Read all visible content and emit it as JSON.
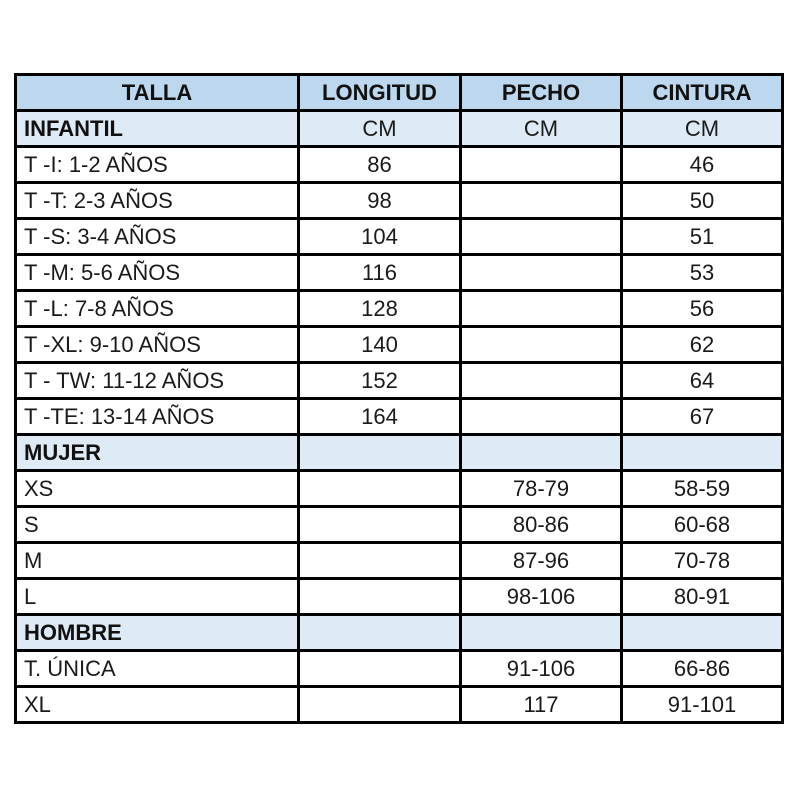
{
  "page": {
    "background": "#ffffff"
  },
  "table": {
    "border_color": "#000000",
    "header_bg": "#BDD7EE",
    "section_bg": "#DEEAF6",
    "row_bg": "#FFFFFF",
    "columns": [
      {
        "key": "talla",
        "label": "TALLA"
      },
      {
        "key": "longitud",
        "label": "LONGITUD"
      },
      {
        "key": "pecho",
        "label": "PECHO"
      },
      {
        "key": "cintura",
        "label": "CINTURA"
      }
    ],
    "rows": [
      {
        "type": "section",
        "talla": "INFANTIL",
        "longitud": "CM",
        "pecho": "CM",
        "cintura": "CM"
      },
      {
        "type": "data",
        "talla": "T -I: 1-2 AÑOS",
        "longitud": "86",
        "pecho": "",
        "cintura": "46"
      },
      {
        "type": "data",
        "talla": "T -T: 2-3 AÑOS",
        "longitud": "98",
        "pecho": "",
        "cintura": "50"
      },
      {
        "type": "data",
        "talla": "T -S: 3-4 AÑOS",
        "longitud": "104",
        "pecho": "",
        "cintura": "51"
      },
      {
        "type": "data",
        "talla": "T -M: 5-6 AÑOS",
        "longitud": "116",
        "pecho": "",
        "cintura": "53"
      },
      {
        "type": "data",
        "talla": "T -L: 7-8 AÑOS",
        "longitud": "128",
        "pecho": "",
        "cintura": "56"
      },
      {
        "type": "data",
        "talla": "T -XL: 9-10 AÑOS",
        "longitud": "140",
        "pecho": "",
        "cintura": "62"
      },
      {
        "type": "data",
        "talla": "T - TW: 11-12 AÑOS",
        "longitud": "152",
        "pecho": "",
        "cintura": "64"
      },
      {
        "type": "data",
        "talla": "T -TE: 13-14 AÑOS",
        "longitud": "164",
        "pecho": "",
        "cintura": "67"
      },
      {
        "type": "section",
        "talla": "MUJER",
        "longitud": "",
        "pecho": "",
        "cintura": ""
      },
      {
        "type": "data",
        "talla": "XS",
        "longitud": "",
        "pecho": "78-79",
        "cintura": "58-59"
      },
      {
        "type": "data",
        "talla": "S",
        "longitud": "",
        "pecho": "80-86",
        "cintura": "60-68"
      },
      {
        "type": "data",
        "talla": "M",
        "longitud": "",
        "pecho": "87-96",
        "cintura": "70-78"
      },
      {
        "type": "data",
        "talla": "L",
        "longitud": "",
        "pecho": "98-106",
        "cintura": "80-91"
      },
      {
        "type": "section",
        "talla": "HOMBRE",
        "longitud": "",
        "pecho": "",
        "cintura": ""
      },
      {
        "type": "data",
        "talla": "T. ÚNICA",
        "longitud": "",
        "pecho": "91-106",
        "cintura": "66-86"
      },
      {
        "type": "data",
        "talla": "XL",
        "longitud": "",
        "pecho": "117",
        "cintura": "91-101"
      }
    ]
  }
}
